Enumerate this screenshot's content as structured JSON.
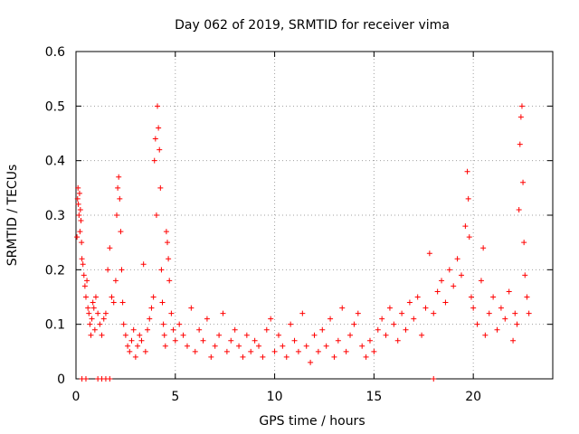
{
  "chart_data": {
    "type": "scatter",
    "title": "Day 062 of 2019, SRMTID for receiver vima",
    "xlabel": "GPS time / hours",
    "ylabel": "SRMTID / TECUs",
    "xlim": [
      0,
      24
    ],
    "ylim": [
      0,
      0.6
    ],
    "xticks": [
      0,
      5,
      10,
      15,
      20
    ],
    "yticks": [
      0,
      0.1,
      0.2,
      0.3,
      0.4,
      0.5,
      0.6
    ],
    "xtick_labels": [
      "0",
      "5",
      "10",
      "15",
      "20"
    ],
    "ytick_labels": [
      "0",
      "0.1",
      "0.2",
      "0.3",
      "0.4",
      "0.5",
      "0.6"
    ],
    "grid": true,
    "marker": "+",
    "series": [
      {
        "name": "SRMTID",
        "color": "#ff0000",
        "points": [
          [
            0.05,
            0.26
          ],
          [
            0.08,
            0.33
          ],
          [
            0.1,
            0.35
          ],
          [
            0.12,
            0.32
          ],
          [
            0.15,
            0.3
          ],
          [
            0.18,
            0.34
          ],
          [
            0.2,
            0.27
          ],
          [
            0.22,
            0.31
          ],
          [
            0.25,
            0.29
          ],
          [
            0.28,
            0.25
          ],
          [
            0.3,
            0.22
          ],
          [
            0.35,
            0.21
          ],
          [
            0.4,
            0.19
          ],
          [
            0.45,
            0.17
          ],
          [
            0.5,
            0.15
          ],
          [
            0.55,
            0.18
          ],
          [
            0.6,
            0.13
          ],
          [
            0.65,
            0.12
          ],
          [
            0.7,
            0.1
          ],
          [
            0.75,
            0.08
          ],
          [
            0.8,
            0.11
          ],
          [
            0.85,
            0.14
          ],
          [
            0.9,
            0.13
          ],
          [
            0.95,
            0.09
          ],
          [
            1.0,
            0.15
          ],
          [
            1.1,
            0.12
          ],
          [
            1.2,
            0.1
          ],
          [
            1.3,
            0.08
          ],
          [
            1.4,
            0.11
          ],
          [
            1.5,
            0.12
          ],
          [
            1.6,
            0.2
          ],
          [
            1.7,
            0.24
          ],
          [
            1.8,
            0.15
          ],
          [
            1.9,
            0.14
          ],
          [
            2.0,
            0.18
          ],
          [
            2.05,
            0.3
          ],
          [
            2.1,
            0.35
          ],
          [
            2.15,
            0.37
          ],
          [
            2.2,
            0.33
          ],
          [
            2.25,
            0.27
          ],
          [
            2.3,
            0.2
          ],
          [
            2.35,
            0.14
          ],
          [
            2.4,
            0.1
          ],
          [
            2.5,
            0.08
          ],
          [
            2.6,
            0.06
          ],
          [
            2.7,
            0.05
          ],
          [
            2.8,
            0.07
          ],
          [
            2.9,
            0.09
          ],
          [
            3.0,
            0.04
          ],
          [
            3.1,
            0.06
          ],
          [
            3.2,
            0.08
          ],
          [
            3.3,
            0.07
          ],
          [
            3.4,
            0.21
          ],
          [
            3.5,
            0.05
          ],
          [
            3.6,
            0.09
          ],
          [
            3.7,
            0.11
          ],
          [
            3.8,
            0.13
          ],
          [
            3.9,
            0.15
          ],
          [
            3.95,
            0.4
          ],
          [
            4.0,
            0.44
          ],
          [
            4.05,
            0.3
          ],
          [
            4.1,
            0.5
          ],
          [
            4.15,
            0.46
          ],
          [
            4.2,
            0.42
          ],
          [
            4.25,
            0.35
          ],
          [
            4.3,
            0.2
          ],
          [
            4.35,
            0.14
          ],
          [
            4.4,
            0.1
          ],
          [
            4.45,
            0.08
          ],
          [
            4.5,
            0.06
          ],
          [
            4.55,
            0.27
          ],
          [
            4.6,
            0.25
          ],
          [
            4.65,
            0.22
          ],
          [
            4.7,
            0.18
          ],
          [
            4.8,
            0.12
          ],
          [
            4.9,
            0.09
          ],
          [
            5.0,
            0.07
          ],
          [
            5.2,
            0.1
          ],
          [
            5.4,
            0.08
          ],
          [
            5.6,
            0.06
          ],
          [
            5.8,
            0.13
          ],
          [
            6.0,
            0.05
          ],
          [
            6.2,
            0.09
          ],
          [
            6.4,
            0.07
          ],
          [
            6.6,
            0.11
          ],
          [
            6.8,
            0.04
          ],
          [
            7.0,
            0.06
          ],
          [
            7.2,
            0.08
          ],
          [
            7.4,
            0.12
          ],
          [
            7.6,
            0.05
          ],
          [
            7.8,
            0.07
          ],
          [
            8.0,
            0.09
          ],
          [
            8.2,
            0.06
          ],
          [
            8.4,
            0.04
          ],
          [
            8.6,
            0.08
          ],
          [
            8.8,
            0.05
          ],
          [
            9.0,
            0.07
          ],
          [
            9.2,
            0.06
          ],
          [
            9.4,
            0.04
          ],
          [
            9.6,
            0.09
          ],
          [
            9.8,
            0.11
          ],
          [
            10.0,
            0.05
          ],
          [
            10.2,
            0.08
          ],
          [
            10.4,
            0.06
          ],
          [
            10.6,
            0.04
          ],
          [
            10.8,
            0.1
          ],
          [
            11.0,
            0.07
          ],
          [
            11.2,
            0.05
          ],
          [
            11.4,
            0.12
          ],
          [
            11.6,
            0.06
          ],
          [
            11.8,
            0.03
          ],
          [
            12.0,
            0.08
          ],
          [
            12.2,
            0.05
          ],
          [
            12.4,
            0.09
          ],
          [
            12.6,
            0.06
          ],
          [
            12.8,
            0.11
          ],
          [
            13.0,
            0.04
          ],
          [
            13.2,
            0.07
          ],
          [
            13.4,
            0.13
          ],
          [
            13.6,
            0.05
          ],
          [
            13.8,
            0.08
          ],
          [
            14.0,
            0.1
          ],
          [
            14.2,
            0.12
          ],
          [
            14.4,
            0.06
          ],
          [
            14.6,
            0.04
          ],
          [
            14.8,
            0.07
          ],
          [
            15.0,
            0.05
          ],
          [
            15.2,
            0.09
          ],
          [
            15.4,
            0.11
          ],
          [
            15.6,
            0.08
          ],
          [
            15.8,
            0.13
          ],
          [
            16.0,
            0.1
          ],
          [
            16.2,
            0.07
          ],
          [
            16.4,
            0.12
          ],
          [
            16.6,
            0.09
          ],
          [
            16.8,
            0.14
          ],
          [
            17.0,
            0.11
          ],
          [
            17.2,
            0.15
          ],
          [
            17.4,
            0.08
          ],
          [
            17.6,
            0.13
          ],
          [
            17.8,
            0.23
          ],
          [
            18.0,
            0.12
          ],
          [
            18.2,
            0.16
          ],
          [
            18.4,
            0.18
          ],
          [
            18.6,
            0.14
          ],
          [
            18.8,
            0.2
          ],
          [
            19.0,
            0.17
          ],
          [
            19.2,
            0.22
          ],
          [
            19.4,
            0.19
          ],
          [
            19.6,
            0.28
          ],
          [
            19.7,
            0.38
          ],
          [
            19.75,
            0.33
          ],
          [
            19.8,
            0.26
          ],
          [
            19.9,
            0.15
          ],
          [
            20.0,
            0.13
          ],
          [
            20.2,
            0.1
          ],
          [
            20.4,
            0.18
          ],
          [
            20.5,
            0.24
          ],
          [
            20.6,
            0.08
          ],
          [
            20.8,
            0.12
          ],
          [
            21.0,
            0.15
          ],
          [
            21.2,
            0.09
          ],
          [
            21.4,
            0.13
          ],
          [
            21.6,
            0.11
          ],
          [
            21.8,
            0.16
          ],
          [
            22.0,
            0.07
          ],
          [
            22.1,
            0.12
          ],
          [
            22.2,
            0.1
          ],
          [
            22.3,
            0.31
          ],
          [
            22.35,
            0.43
          ],
          [
            22.4,
            0.48
          ],
          [
            22.45,
            0.5
          ],
          [
            22.5,
            0.36
          ],
          [
            22.55,
            0.25
          ],
          [
            22.6,
            0.19
          ],
          [
            22.7,
            0.15
          ],
          [
            22.8,
            0.12
          ],
          [
            0.3,
            0.0
          ],
          [
            0.5,
            0.0
          ],
          [
            1.1,
            0.0
          ],
          [
            1.3,
            0.0
          ],
          [
            1.5,
            0.0
          ],
          [
            1.7,
            0.0
          ],
          [
            18.0,
            0.0
          ]
        ]
      }
    ]
  }
}
